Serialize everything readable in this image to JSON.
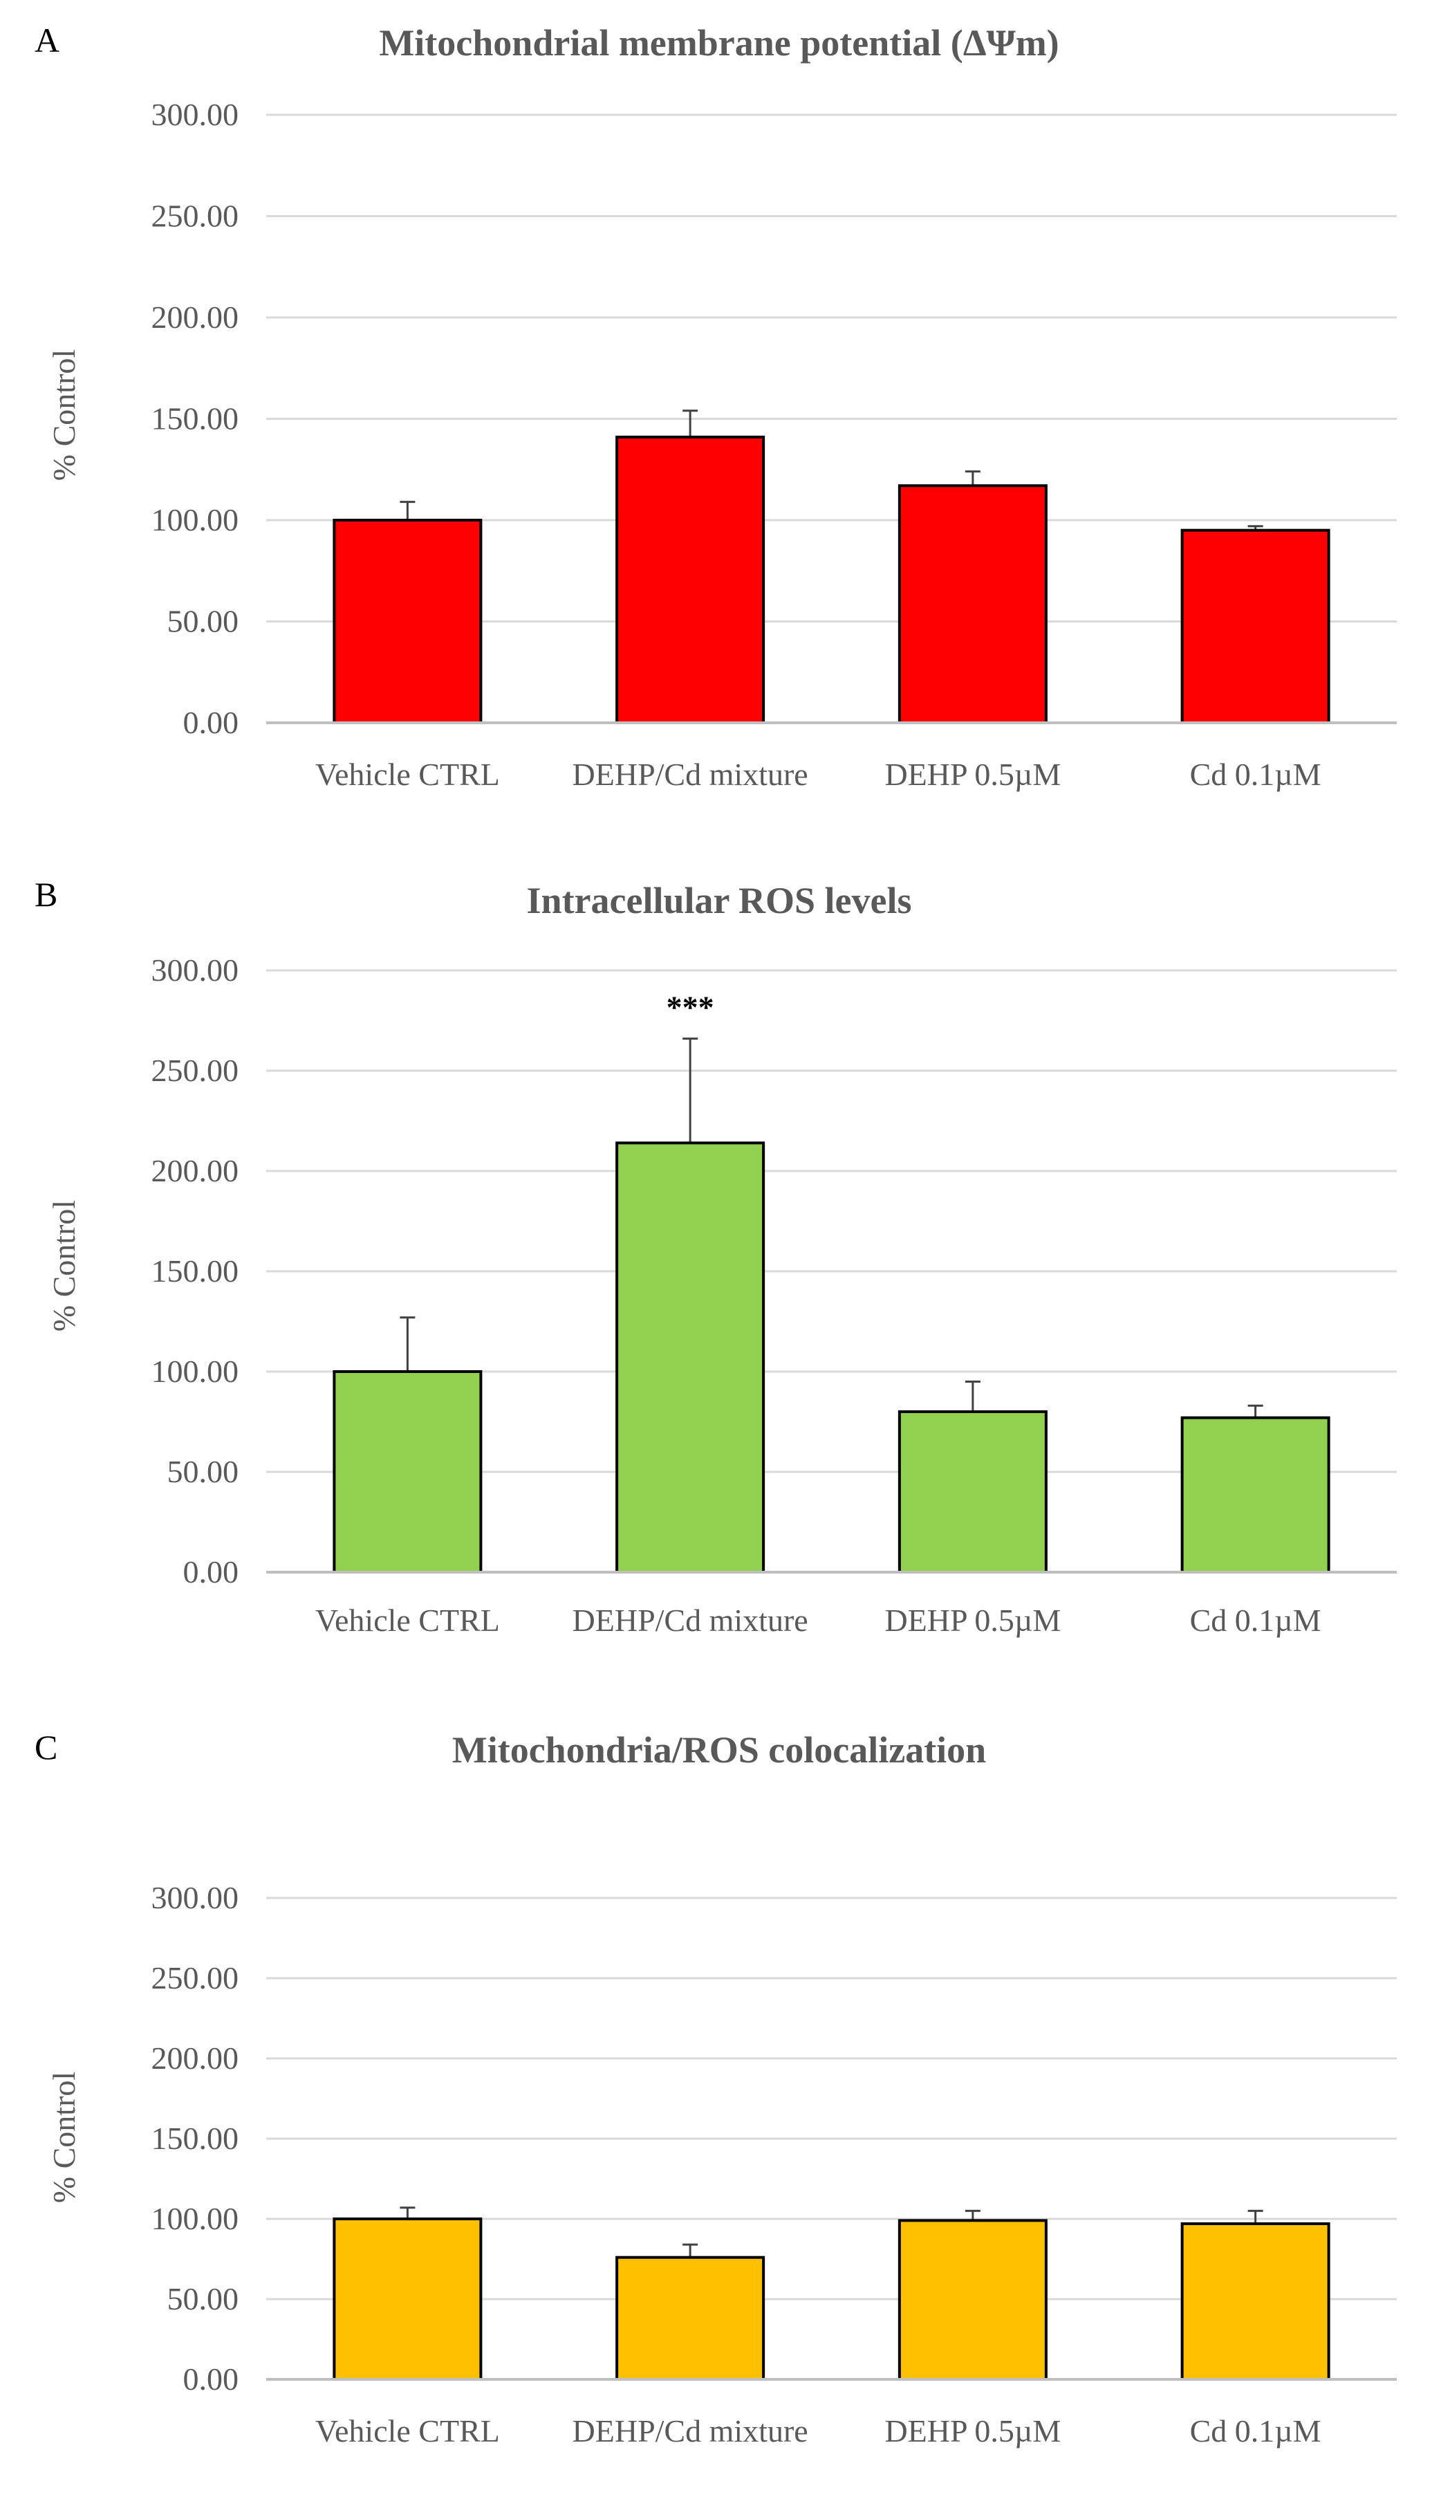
{
  "chart_data": [
    {
      "panel": "A",
      "type": "bar",
      "title": "Mitochondrial membrane potential (ΔΨm)",
      "ylabel": "% Control",
      "xlabel": "",
      "categories": [
        "Vehicle CTRL",
        "DEHP/Cd mixture",
        "DEHP 0.5µM",
        "Cd 0.1µM"
      ],
      "values": [
        100,
        141,
        117,
        95
      ],
      "errors": [
        9,
        13,
        7,
        2
      ],
      "significance": [
        "",
        "",
        "",
        ""
      ],
      "ylim": [
        0,
        300
      ],
      "yticks": [
        "0.00",
        "50.00",
        "100.00",
        "150.00",
        "200.00",
        "250.00",
        "300.00"
      ],
      "grid": true,
      "bar_color": "#FF0000"
    },
    {
      "panel": "B",
      "type": "bar",
      "title": "Intracellular ROS levels",
      "ylabel": "% Control",
      "xlabel": "",
      "categories": [
        "Vehicle CTRL",
        "DEHP/Cd mixture",
        "DEHP 0.5µM",
        "Cd 0.1µM"
      ],
      "values": [
        100,
        214,
        80,
        77
      ],
      "errors": [
        27,
        52,
        15,
        6
      ],
      "significance": [
        "",
        "***",
        "",
        ""
      ],
      "ylim": [
        0,
        300
      ],
      "yticks": [
        "0.00",
        "50.00",
        "100.00",
        "150.00",
        "200.00",
        "250.00",
        "300.00"
      ],
      "grid": true,
      "bar_color": "#92D050"
    },
    {
      "panel": "C",
      "type": "bar",
      "title": "Mitochondria/ROS colocalization",
      "ylabel": "% Control",
      "xlabel": "",
      "categories": [
        "Vehicle CTRL",
        "DEHP/Cd mixture",
        "DEHP 0.5µM",
        "Cd 0.1µM"
      ],
      "values": [
        100,
        76,
        99,
        97
      ],
      "errors": [
        7,
        8,
        6,
        8
      ],
      "significance": [
        "",
        "",
        "",
        ""
      ],
      "ylim": [
        0,
        300
      ],
      "yticks": [
        "0.00",
        "50.00",
        "100.00",
        "150.00",
        "200.00",
        "250.00",
        "300.00"
      ],
      "grid": true,
      "bar_color": "#FFC000"
    }
  ],
  "colors": {
    "grid": "#D9D9D9",
    "axis": "#BFBFBF",
    "tick_text": "#595959",
    "title_text": "#595959",
    "panel_letter": "#000000",
    "bar_outline": "#000000",
    "error_bar": "#404040"
  }
}
